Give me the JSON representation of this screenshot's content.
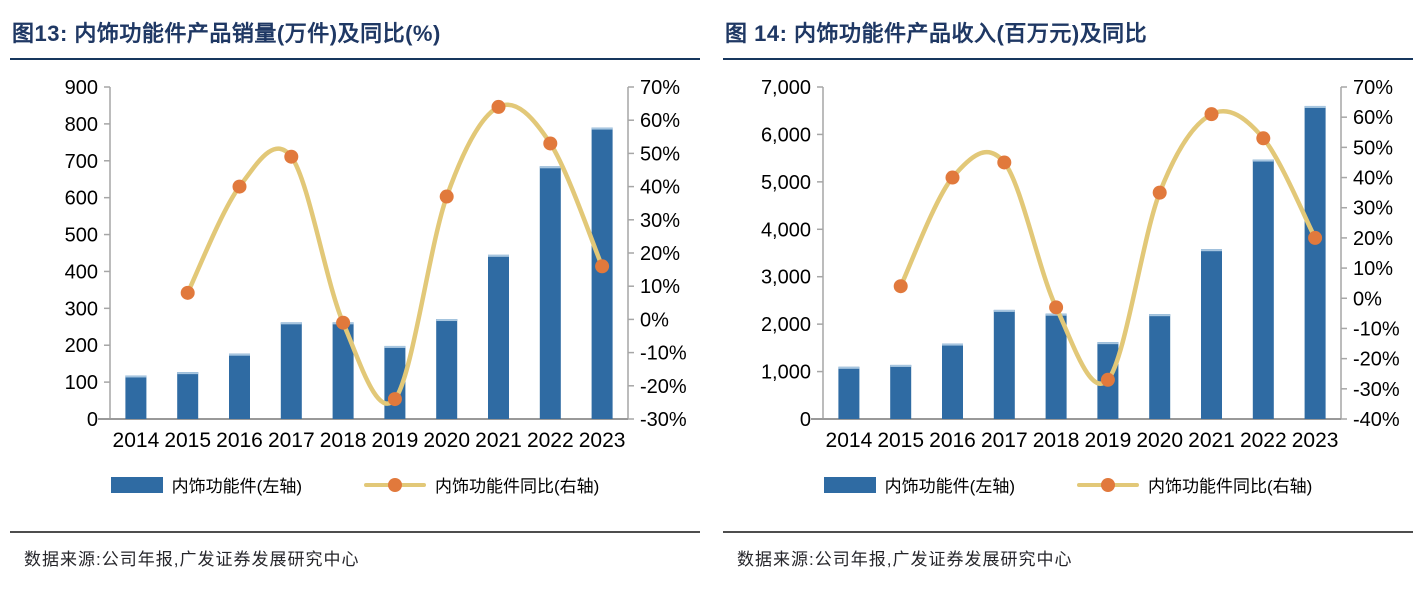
{
  "colors": {
    "bar": "#2F6BA3",
    "bar_top_edge": "#A7C6E0",
    "line": "#E2C878",
    "marker": "#E1793C",
    "axis": "#A6A6A6",
    "x_axis": "#999999",
    "tick_text": "#000000",
    "title_text": "#1F3864",
    "title_rule": "#17365D",
    "footer_rule": "#4D4D4D",
    "source_text": "#26262B"
  },
  "figures": [
    {
      "title": "图13:  内饰功能件产品销量(万件)及同比(%)",
      "legend": [
        {
          "type": "bar",
          "label": "内饰功能件(左轴)"
        },
        {
          "type": "line",
          "label": "内饰功能件同比(右轴)"
        }
      ],
      "source": "数据来源:公司年报,广发证券发展研究中心"
    },
    {
      "title": "图 14:  内饰功能件产品收入(百万元)及同比",
      "legend": [
        {
          "type": "bar",
          "label": "内饰功能件(左轴)"
        },
        {
          "type": "line",
          "label": "内饰功能件同比(右轴)"
        }
      ],
      "source": "数据来源:公司年报,广发证券发展研究中心"
    }
  ],
  "chart_data": [
    {
      "type": "bar+line",
      "title": "内饰功能件产品销量(万件)及同比(%)",
      "categories": [
        "2014",
        "2015",
        "2016",
        "2017",
        "2018",
        "2019",
        "2020",
        "2021",
        "2022",
        "2023"
      ],
      "series": [
        {
          "name": "内饰功能件(左轴)",
          "type": "bar",
          "axis": "left",
          "values": [
            118,
            127,
            177,
            262,
            262,
            198,
            271,
            445,
            685,
            790
          ]
        },
        {
          "name": "内饰功能件同比(右轴)",
          "type": "line",
          "axis": "right",
          "values": [
            null,
            8,
            40,
            49,
            -1,
            -24,
            37,
            64,
            53,
            16
          ]
        }
      ],
      "left_axis": {
        "min": 0,
        "max": 900,
        "step": 100,
        "tick_labels": [
          "0",
          "100",
          "200",
          "300",
          "400",
          "500",
          "600",
          "700",
          "800",
          "900"
        ]
      },
      "right_axis": {
        "min": -30,
        "max": 70,
        "step": 10,
        "tick_labels": [
          "-30%",
          "-20%",
          "-10%",
          "0%",
          "10%",
          "20%",
          "30%",
          "40%",
          "50%",
          "60%",
          "70%"
        ]
      },
      "grid": false,
      "legend_position": "bottom"
    },
    {
      "type": "bar+line",
      "title": "内饰功能件产品收入(百万元)及同比",
      "categories": [
        "2014",
        "2015",
        "2016",
        "2017",
        "2018",
        "2019",
        "2020",
        "2021",
        "2022",
        "2023"
      ],
      "series": [
        {
          "name": "内饰功能件(左轴)",
          "type": "bar",
          "axis": "left",
          "values": [
            1100,
            1140,
            1590,
            2300,
            2220,
            1620,
            2210,
            3580,
            5470,
            6600
          ]
        },
        {
          "name": "内饰功能件同比(右轴)",
          "type": "line",
          "axis": "right",
          "values": [
            null,
            4,
            40,
            45,
            -3,
            -27,
            35,
            61,
            53,
            20
          ]
        }
      ],
      "left_axis": {
        "min": 0,
        "max": 7000,
        "step": 1000,
        "tick_labels": [
          "0",
          "1,000",
          "2,000",
          "3,000",
          "4,000",
          "5,000",
          "6,000",
          "7,000"
        ]
      },
      "right_axis": {
        "min": -40,
        "max": 70,
        "step": 10,
        "tick_labels": [
          "-40%",
          "-30%",
          "-20%",
          "-10%",
          "0%",
          "10%",
          "20%",
          "30%",
          "40%",
          "50%",
          "60%",
          "70%"
        ]
      },
      "grid": false,
      "legend_position": "bottom"
    }
  ]
}
